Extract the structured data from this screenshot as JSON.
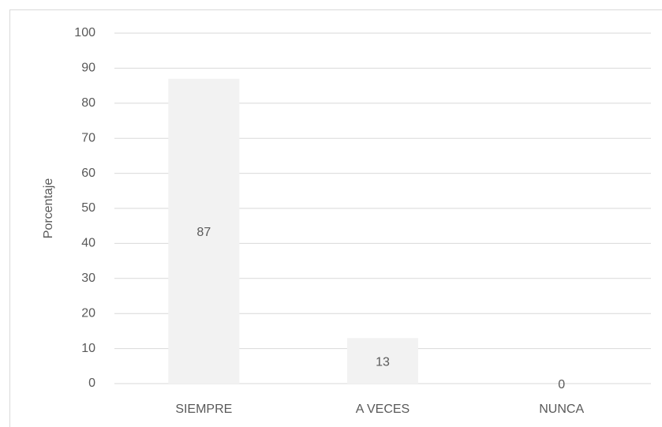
{
  "chart_data": {
    "type": "bar",
    "y_label": "Porcentaje",
    "categories": [
      "SIEMPRE",
      "A VECES",
      "NUNCA"
    ],
    "values": [
      87,
      13,
      0
    ],
    "color": "#f2f2f2",
    "ylim": [
      0,
      100
    ],
    "yticks": [
      0,
      10,
      20,
      30,
      40,
      50,
      60,
      70,
      80,
      90,
      100
    ],
    "grid": true,
    "data_labels": true
  }
}
